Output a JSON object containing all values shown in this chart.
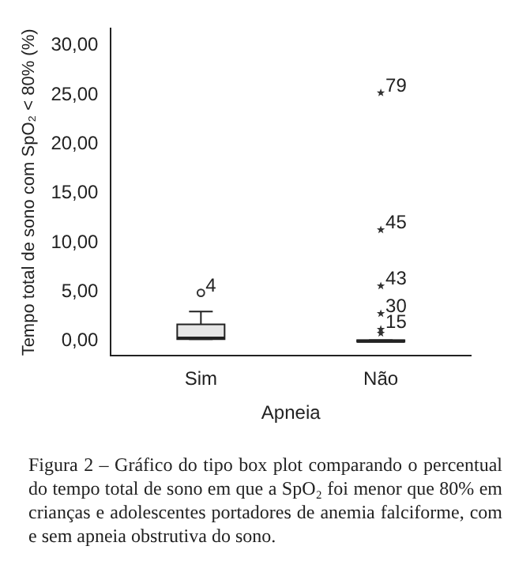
{
  "chart_data": {
    "type": "box",
    "xlabel": "Apneia",
    "ylabel": "Tempo total de sono com SpO₂ < 80% (%)",
    "categories": [
      "Sim",
      "Não"
    ],
    "boxes": [
      {
        "low": 0.2,
        "q1": 0.2,
        "median": 0.3,
        "q3": 1.7,
        "high": 3.0
      },
      {
        "low": 0,
        "q1": 0,
        "median": 0,
        "q3": 0.1,
        "high": 0.1
      }
    ],
    "series": [
      {
        "type": "scatter",
        "marker": "circle",
        "color": "#333333",
        "x": [
          "Sim"
        ],
        "values": [
          4.9
        ]
      },
      {
        "type": "scatter",
        "marker": "star",
        "color": "#333333",
        "x": [
          "Não",
          "Não",
          "Não",
          "Não",
          "Não",
          "Não"
        ],
        "values": [
          25.2,
          11.3,
          5.6,
          2.8,
          1.2,
          0.8
        ]
      }
    ],
    "ylim": [
      -1.5,
      31.7
    ],
    "yticks": [
      {
        "value": 0,
        "label": "0,00"
      },
      {
        "value": 5,
        "label": "5,00"
      },
      {
        "value": 10,
        "label": "10,00"
      },
      {
        "value": 15,
        "label": "15,00"
      },
      {
        "value": 20,
        "label": "20,00"
      },
      {
        "value": 25,
        "label": "25,00"
      },
      {
        "value": 30,
        "label": "30,00"
      }
    ],
    "grid": false,
    "annotations": [
      {
        "text": "4",
        "x": "Sim",
        "y": 4.9
      },
      {
        "text": "79",
        "x": "Não",
        "y": 25.2
      },
      {
        "text": "45",
        "x": "Não",
        "y": 11.3
      },
      {
        "text": "43",
        "x": "Não",
        "y": 5.6
      },
      {
        "text": "30",
        "x": "Não",
        "y": 2.8
      },
      {
        "text": "15",
        "x": "Não",
        "y": 1.2
      },
      "Figura 2 – Gráfico do tipo box plot comparando o percentual do tempo total de sono em que a SpO₂ foi menor que 80% em crianças e adolescentes portadores de anemia falciforme, com e sem apneia obstrutiva do sono."
    ]
  }
}
